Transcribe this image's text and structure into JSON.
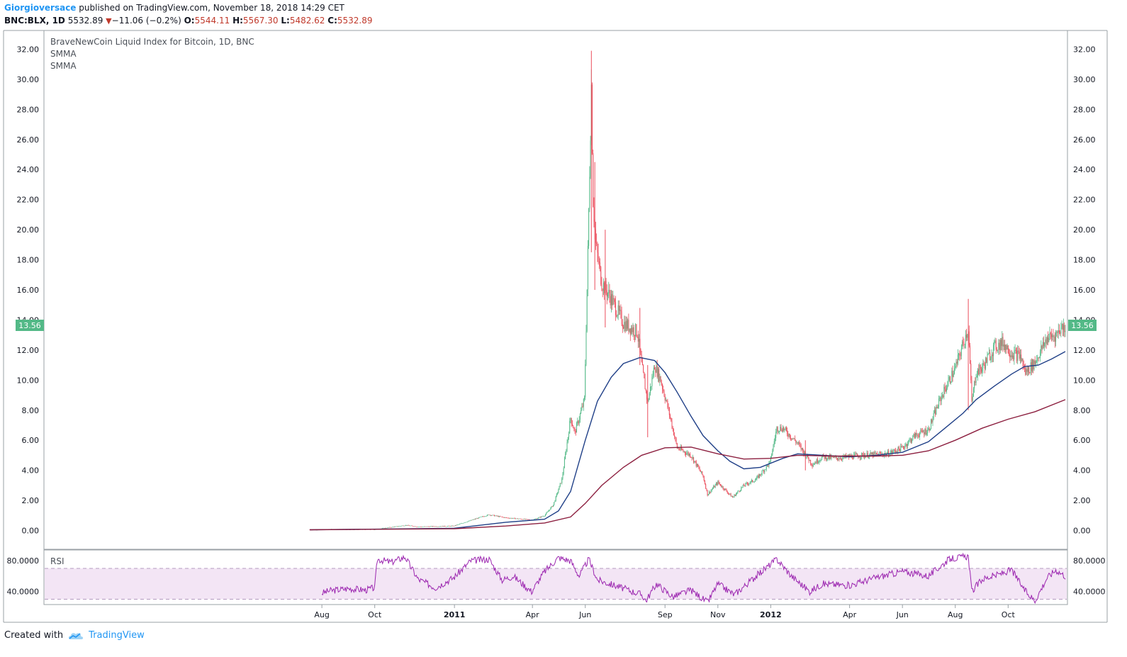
{
  "header": {
    "author": "Giorgioversace",
    "published": "published on TradingView.com, November 18, 2018 14:29 CET",
    "symbol": "BNC:BLX, 1D",
    "last": "5532.89",
    "change": "−11.06 (−0.2%)",
    "o_label": "O:",
    "o_value": "5544.11",
    "h_label": "H:",
    "h_value": "5567.30",
    "l_label": "L:",
    "l_value": "5482.62",
    "c_label": "C:",
    "c_value": "5532.89"
  },
  "legend": {
    "title": "BraveNewCoin Liquid Index for Bitcoin, 1D, BNC",
    "ind1": "SMMA",
    "ind2": "SMMA",
    "rsi": "RSI"
  },
  "price_badge": "13.56",
  "footer": {
    "created": "Created with",
    "brand": "TradingView"
  },
  "colors": {
    "up": "#53b987",
    "down": "#eb4d5c",
    "smma_fast": "#1f3f87",
    "smma_slow": "#8c1f3f",
    "rsi": "#9c27b0",
    "rsi_band": "#f3e5f5",
    "badge": "#53b987"
  },
  "chart_data": [
    {
      "type": "candlestick",
      "title": "BraveNewCoin Liquid Index for Bitcoin, 1D, BNC",
      "ylim": [
        -1.2,
        33.2
      ],
      "y_ticks": [
        "32.00",
        "30.00",
        "28.00",
        "26.00",
        "24.00",
        "22.00",
        "20.00",
        "18.00",
        "16.00",
        "14.00",
        "12.00",
        "10.00",
        "8.00",
        "6.00",
        "4.00",
        "2.00",
        "0.00"
      ],
      "x_ticks": [
        {
          "label": "Aug",
          "bold": false
        },
        {
          "label": "Oct",
          "bold": false
        },
        {
          "label": "2011",
          "bold": true
        },
        {
          "label": "Apr",
          "bold": false
        },
        {
          "label": "Jun",
          "bold": false
        },
        {
          "label": "Sep",
          "bold": false
        },
        {
          "label": "Nov",
          "bold": false
        },
        {
          "label": "2012",
          "bold": true
        },
        {
          "label": "Apr",
          "bold": false
        },
        {
          "label": "Jun",
          "bold": false
        },
        {
          "label": "Aug",
          "bold": false
        },
        {
          "label": "Oct",
          "bold": false
        }
      ],
      "last_value": 13.56,
      "price_path": [
        [
          "2010-07-18",
          0.05
        ],
        [
          "2010-08-15",
          0.07
        ],
        [
          "2010-10-01",
          0.07
        ],
        [
          "2010-11-06",
          0.35
        ],
        [
          "2010-11-20",
          0.25
        ],
        [
          "2010-12-31",
          0.3
        ],
        [
          "2011-02-01",
          0.9
        ],
        [
          "2011-02-10",
          1.05
        ],
        [
          "2011-03-01",
          0.85
        ],
        [
          "2011-04-01",
          0.7
        ],
        [
          "2011-04-15",
          1.0
        ],
        [
          "2011-04-25",
          1.7
        ],
        [
          "2011-05-05",
          3.4
        ],
        [
          "2011-05-15",
          7.5
        ],
        [
          "2011-05-20",
          6.5
        ],
        [
          "2011-05-31",
          8.7
        ],
        [
          "2011-06-04",
          18.5
        ],
        [
          "2011-06-08",
          29.6
        ],
        [
          "2011-06-10",
          22.0
        ],
        [
          "2011-06-13",
          19.0
        ],
        [
          "2011-06-20",
          16.5
        ],
        [
          "2011-06-30",
          15.5
        ],
        [
          "2011-07-15",
          13.8
        ],
        [
          "2011-07-31",
          13.2
        ],
        [
          "2011-08-05",
          11.0
        ],
        [
          "2011-08-12",
          8.5
        ],
        [
          "2011-08-20",
          11.0
        ],
        [
          "2011-08-27",
          10.0
        ],
        [
          "2011-09-05",
          8.0
        ],
        [
          "2011-09-15",
          5.5
        ],
        [
          "2011-10-01",
          5.0
        ],
        [
          "2011-10-15",
          3.6
        ],
        [
          "2011-10-20",
          2.4
        ],
        [
          "2011-11-01",
          3.2
        ],
        [
          "2011-11-18",
          2.2
        ],
        [
          "2011-12-01",
          3.0
        ],
        [
          "2011-12-15",
          3.4
        ],
        [
          "2011-12-31",
          4.5
        ],
        [
          "2012-01-08",
          6.8
        ],
        [
          "2012-01-15",
          6.8
        ],
        [
          "2012-02-01",
          5.8
        ],
        [
          "2012-02-18",
          4.4
        ],
        [
          "2012-03-01",
          4.9
        ],
        [
          "2012-03-15",
          4.8
        ],
        [
          "2012-04-15",
          5.0
        ],
        [
          "2012-05-15",
          5.1
        ],
        [
          "2012-06-01",
          5.5
        ],
        [
          "2012-06-15",
          6.3
        ],
        [
          "2012-07-01",
          6.7
        ],
        [
          "2012-07-15",
          8.8
        ],
        [
          "2012-08-01",
          10.8
        ],
        [
          "2012-08-16",
          13.5
        ],
        [
          "2012-08-20",
          8.5
        ],
        [
          "2012-08-25",
          10.5
        ],
        [
          "2012-09-01",
          10.8
        ],
        [
          "2012-09-15",
          12.2
        ],
        [
          "2012-09-25",
          12.5
        ],
        [
          "2012-10-05",
          11.8
        ],
        [
          "2012-10-15",
          11.6
        ],
        [
          "2012-10-21",
          10.5
        ],
        [
          "2012-11-01",
          11.2
        ],
        [
          "2012-11-15",
          12.8
        ],
        [
          "2012-11-25",
          13.0
        ],
        [
          "2012-12-01",
          13.5
        ],
        [
          "2012-12-06",
          13.56
        ]
      ],
      "spikes": [
        {
          "date": "2011-06-08",
          "high": 31.9,
          "low": 18.5
        },
        {
          "date": "2011-06-12",
          "high": 24.5,
          "low": 16.0
        },
        {
          "date": "2011-06-24",
          "high": 20.0,
          "low": 13.5
        },
        {
          "date": "2011-08-03",
          "high": 14.8,
          "low": 11.0
        },
        {
          "date": "2011-08-12",
          "high": 11.0,
          "low": 6.2
        },
        {
          "date": "2012-02-10",
          "high": 6.0,
          "low": 4.0
        },
        {
          "date": "2012-08-16",
          "high": 15.4,
          "low": 8.0
        }
      ],
      "series": [
        {
          "color": "#1f3f87",
          "points": [
            [
              "2010-07-18",
              0.05
            ],
            [
              "2010-12-31",
              0.15
            ],
            [
              "2011-03-01",
              0.55
            ],
            [
              "2011-04-15",
              0.75
            ],
            [
              "2011-05-01",
              1.3
            ],
            [
              "2011-05-15",
              2.6
            ],
            [
              "2011-06-01",
              6.0
            ],
            [
              "2011-06-15",
              8.6
            ],
            [
              "2011-07-01",
              10.2
            ],
            [
              "2011-07-15",
              11.1
            ],
            [
              "2011-08-03",
              11.5
            ],
            [
              "2011-08-20",
              11.3
            ],
            [
              "2011-09-01",
              10.5
            ],
            [
              "2011-09-15",
              9.2
            ],
            [
              "2011-10-01",
              7.6
            ],
            [
              "2011-10-15",
              6.3
            ],
            [
              "2011-11-01",
              5.3
            ],
            [
              "2011-11-15",
              4.6
            ],
            [
              "2011-12-01",
              4.1
            ],
            [
              "2011-12-20",
              4.2
            ],
            [
              "2012-01-15",
              4.8
            ],
            [
              "2012-02-01",
              5.1
            ],
            [
              "2012-03-01",
              5.0
            ],
            [
              "2012-04-01",
              4.9
            ],
            [
              "2012-05-01",
              5.0
            ],
            [
              "2012-06-01",
              5.2
            ],
            [
              "2012-07-01",
              5.9
            ],
            [
              "2012-07-20",
              6.8
            ],
            [
              "2012-08-10",
              7.8
            ],
            [
              "2012-08-25",
              8.7
            ],
            [
              "2012-09-15",
              9.6
            ],
            [
              "2012-10-05",
              10.4
            ],
            [
              "2012-10-20",
              10.9
            ],
            [
              "2012-11-05",
              11.0
            ],
            [
              "2012-11-20",
              11.4
            ],
            [
              "2012-12-06",
              11.9
            ]
          ]
        },
        {
          "color": "#8c1f3f",
          "points": [
            [
              "2010-07-18",
              0.05
            ],
            [
              "2011-01-01",
              0.12
            ],
            [
              "2011-03-01",
              0.3
            ],
            [
              "2011-04-15",
              0.5
            ],
            [
              "2011-05-15",
              0.9
            ],
            [
              "2011-06-01",
              1.8
            ],
            [
              "2011-06-20",
              3.0
            ],
            [
              "2011-07-15",
              4.2
            ],
            [
              "2011-08-05",
              5.0
            ],
            [
              "2011-09-01",
              5.5
            ],
            [
              "2011-10-01",
              5.55
            ],
            [
              "2011-11-01",
              5.1
            ],
            [
              "2011-12-01",
              4.75
            ],
            [
              "2012-01-01",
              4.8
            ],
            [
              "2012-02-01",
              5.0
            ],
            [
              "2012-03-15",
              4.95
            ],
            [
              "2012-05-01",
              4.95
            ],
            [
              "2012-06-01",
              5.0
            ],
            [
              "2012-07-01",
              5.3
            ],
            [
              "2012-08-01",
              6.0
            ],
            [
              "2012-09-01",
              6.8
            ],
            [
              "2012-10-01",
              7.4
            ],
            [
              "2012-11-01",
              7.9
            ],
            [
              "2012-12-06",
              8.7
            ]
          ]
        }
      ]
    },
    {
      "type": "line",
      "title": "RSI",
      "ylim": [
        24,
        93
      ],
      "y_ticks": [
        "80.0000",
        "40.0000"
      ],
      "bands": [
        70,
        30
      ],
      "series": [
        {
          "color": "#9c27b0",
          "points": [
            [
              "2010-08-01",
              38
            ],
            [
              "2010-08-10",
              41
            ],
            [
              "2010-09-01",
              44
            ],
            [
              "2010-09-20",
              42
            ],
            [
              "2010-10-01",
              45
            ],
            [
              "2010-10-04",
              82
            ],
            [
              "2010-10-20",
              78
            ],
            [
              "2010-11-05",
              85
            ],
            [
              "2010-11-20",
              56
            ],
            [
              "2010-12-10",
              45
            ],
            [
              "2010-12-31",
              58
            ],
            [
              "2011-01-20",
              80
            ],
            [
              "2011-02-10",
              82
            ],
            [
              "2011-02-25",
              55
            ],
            [
              "2011-03-10",
              60
            ],
            [
              "2011-03-31",
              40
            ],
            [
              "2011-04-15",
              66
            ],
            [
              "2011-05-01",
              84
            ],
            [
              "2011-05-15",
              80
            ],
            [
              "2011-05-25",
              60
            ],
            [
              "2011-06-05",
              82
            ],
            [
              "2011-06-15",
              55
            ],
            [
              "2011-07-10",
              46
            ],
            [
              "2011-08-05",
              36
            ],
            [
              "2011-08-10",
              28
            ],
            [
              "2011-08-22",
              50
            ],
            [
              "2011-09-10",
              33
            ],
            [
              "2011-10-01",
              42
            ],
            [
              "2011-10-20",
              26
            ],
            [
              "2011-11-01",
              50
            ],
            [
              "2011-11-20",
              36
            ],
            [
              "2011-12-15",
              60
            ],
            [
              "2012-01-08",
              82
            ],
            [
              "2012-01-25",
              60
            ],
            [
              "2012-02-15",
              40
            ],
            [
              "2012-03-01",
              50
            ],
            [
              "2012-04-01",
              48
            ],
            [
              "2012-05-01",
              58
            ],
            [
              "2012-06-01",
              66
            ],
            [
              "2012-07-01",
              60
            ],
            [
              "2012-07-25",
              82
            ],
            [
              "2012-08-16",
              86
            ],
            [
              "2012-08-20",
              40
            ],
            [
              "2012-09-01",
              56
            ],
            [
              "2012-09-20",
              62
            ],
            [
              "2012-10-05",
              68
            ],
            [
              "2012-10-21",
              40
            ],
            [
              "2012-11-01",
              28
            ],
            [
              "2012-11-15",
              58
            ],
            [
              "2012-11-25",
              68
            ],
            [
              "2012-12-06",
              60
            ]
          ]
        }
      ]
    }
  ]
}
